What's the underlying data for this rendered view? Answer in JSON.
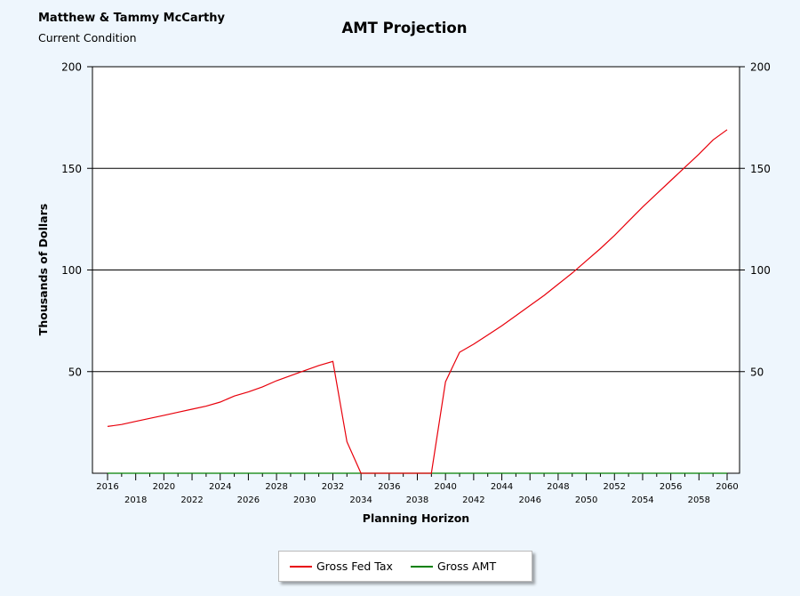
{
  "header": {
    "client_name": "Matthew & Tammy McCarthy",
    "condition": "Current Condition"
  },
  "colors": {
    "background": "#eef6fd",
    "gross_fed_tax": "#e8000b",
    "gross_amt": "#008000",
    "gridline": "#000000"
  },
  "chart_data": {
    "type": "line",
    "title": "AMT Projection",
    "xlabel": "Planning Horizon",
    "ylabel": "Thousands of Dollars",
    "ylim": [
      0,
      200
    ],
    "y_ticks": [
      50,
      100,
      150,
      200
    ],
    "y_tick_labels": [
      "50",
      "100",
      "150",
      "200"
    ],
    "y_axis_mirrored_right": true,
    "x_tick_labels": [
      "2016",
      "2018",
      "2020",
      "2022",
      "2024",
      "2026",
      "2028",
      "2030",
      "2032",
      "2034",
      "2036",
      "2038",
      "2040",
      "2042",
      "2044",
      "2046",
      "2048",
      "2050",
      "2052",
      "2054",
      "2056",
      "2058",
      "2060"
    ],
    "grid": "horizontal",
    "legend_position": "bottom",
    "x": [
      2016,
      2017,
      2018,
      2019,
      2020,
      2021,
      2022,
      2023,
      2024,
      2025,
      2026,
      2027,
      2028,
      2029,
      2030,
      2031,
      2032,
      2033,
      2034,
      2035,
      2036,
      2037,
      2038,
      2039,
      2040,
      2041,
      2042,
      2043,
      2044,
      2045,
      2046,
      2047,
      2048,
      2049,
      2050,
      2051,
      2052,
      2053,
      2054,
      2055,
      2056,
      2057,
      2058,
      2059,
      2060
    ],
    "series": [
      {
        "name": "Gross Fed Tax",
        "values": [
          23,
          24,
          25.5,
          27,
          28.5,
          30,
          31.5,
          33,
          35,
          38,
          40,
          42.5,
          45.5,
          48,
          50.5,
          53,
          55,
          15.5,
          0,
          0,
          0,
          0,
          0,
          0,
          45,
          59.5,
          63.5,
          68,
          72.5,
          77.5,
          82.5,
          87.5,
          93,
          98.5,
          104.5,
          110.5,
          117,
          124,
          131,
          137.5,
          144,
          150.5,
          157,
          164,
          169
        ]
      },
      {
        "name": "Gross AMT",
        "values": [
          0,
          0,
          0,
          0,
          0,
          0,
          0,
          0,
          0,
          0,
          0,
          0,
          0,
          0,
          0,
          0,
          0,
          0,
          0,
          0,
          0,
          0,
          0,
          0,
          0,
          0,
          0,
          0,
          0,
          0,
          0,
          0,
          0,
          0,
          0,
          0,
          0,
          0,
          0,
          0,
          0,
          0,
          0,
          0,
          0
        ]
      }
    ]
  }
}
